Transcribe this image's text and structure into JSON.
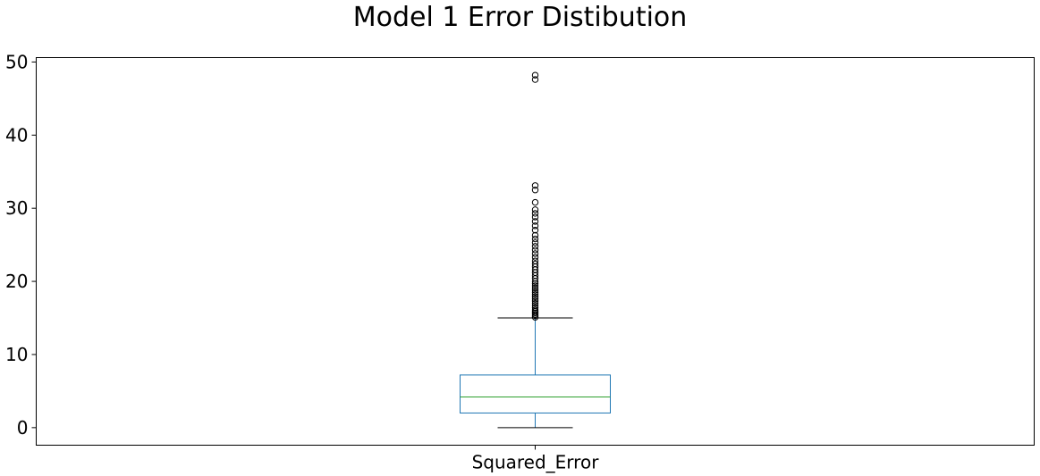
{
  "chart_data": {
    "type": "box",
    "title": "Model 1 Error Distibution",
    "xlabel": "",
    "ylabel": "",
    "categories": [
      "Squared_Error"
    ],
    "ylim": [
      -2.4,
      50.6
    ],
    "yticks": [
      0,
      10,
      20,
      30,
      40,
      50
    ],
    "grid": false,
    "boxes": [
      {
        "label": "Squared_Error",
        "whisker_low": 0.0,
        "q1": 2.0,
        "median": 4.2,
        "q3": 7.2,
        "whisker_high": 15.0,
        "outliers": [
          15.1,
          15.3,
          15.5,
          15.7,
          15.9,
          16.1,
          16.4,
          16.7,
          17.0,
          17.3,
          17.6,
          17.9,
          18.2,
          18.5,
          18.8,
          19.1,
          19.4,
          19.7,
          20.0,
          20.4,
          20.8,
          21.2,
          21.6,
          22.0,
          22.4,
          22.8,
          23.3,
          23.8,
          24.3,
          24.8,
          25.3,
          25.8,
          26.3,
          27.0,
          27.6,
          28.2,
          28.8,
          29.3,
          29.8,
          30.8,
          32.5,
          33.1,
          47.6,
          48.2
        ]
      }
    ],
    "colors": {
      "box": "#1f77b4",
      "median": "#2ca02c",
      "whisker": "#1f77b4",
      "caps": "#000000",
      "outliers": "#000000"
    }
  }
}
